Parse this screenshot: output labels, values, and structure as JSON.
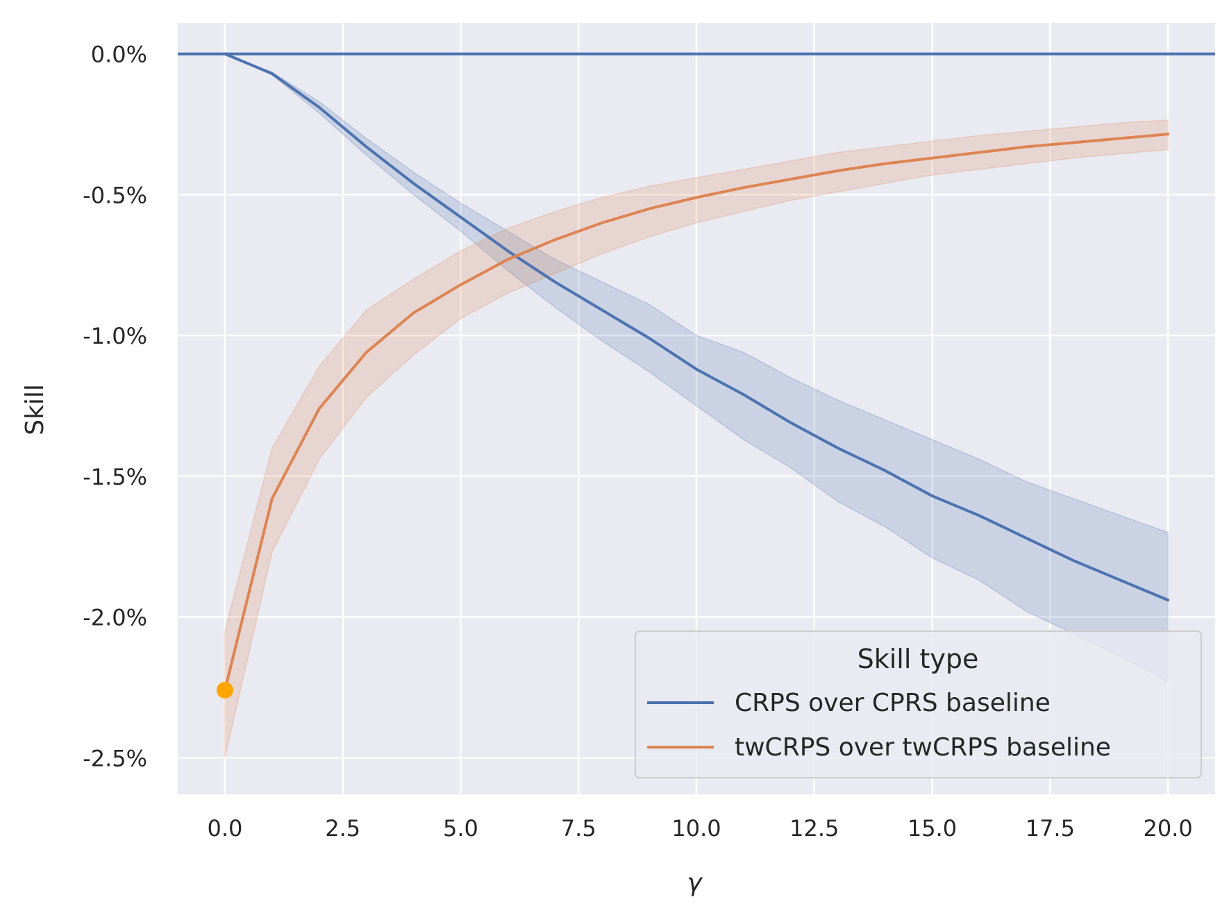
{
  "chart_data": {
    "type": "line",
    "xlabel": "γ",
    "ylabel": "Skill",
    "xlim": [
      -1.0,
      21.0
    ],
    "ylim": [
      -2.63,
      0.11
    ],
    "xticks": [
      0.0,
      2.5,
      5.0,
      7.5,
      10.0,
      12.5,
      15.0,
      17.5,
      20.0
    ],
    "xtick_labels": [
      "0.0",
      "2.5",
      "5.0",
      "7.5",
      "10.0",
      "12.5",
      "15.0",
      "17.5",
      "20.0"
    ],
    "yticks": [
      0.0,
      -0.5,
      -1.0,
      -1.5,
      -2.0,
      -2.5
    ],
    "ytick_labels": [
      "0.0%",
      "-0.5%",
      "-1.0%",
      "-1.5%",
      "-2.0%",
      "-2.5%"
    ],
    "grid": true,
    "background": "#eaeaf2",
    "legend": {
      "title": "Skill type",
      "position": "lower-right"
    },
    "reference_line": {
      "y": 0.0,
      "color": "#4c72b0"
    },
    "x": [
      0,
      1,
      2,
      3,
      4,
      5,
      6,
      7,
      8,
      9,
      10,
      11,
      12,
      13,
      14,
      15,
      16,
      17,
      18,
      19,
      20
    ],
    "series": [
      {
        "name": "CRPS over CPRS baseline",
        "color": "#4c72b0",
        "values": [
          0.0,
          -0.07,
          -0.19,
          -0.33,
          -0.46,
          -0.58,
          -0.7,
          -0.81,
          -0.91,
          -1.01,
          -1.12,
          -1.21,
          -1.31,
          -1.4,
          -1.48,
          -1.57,
          -1.64,
          -1.72,
          -1.8,
          -1.87,
          -1.94
        ],
        "ci_lower": [
          0.0,
          -0.075,
          -0.21,
          -0.36,
          -0.5,
          -0.63,
          -0.77,
          -0.9,
          -1.02,
          -1.13,
          -1.25,
          -1.37,
          -1.47,
          -1.59,
          -1.68,
          -1.79,
          -1.87,
          -1.98,
          -2.06,
          -2.14,
          -2.23
        ],
        "ci_upper": [
          0.0,
          -0.065,
          -0.17,
          -0.3,
          -0.42,
          -0.53,
          -0.63,
          -0.73,
          -0.81,
          -0.89,
          -1.0,
          -1.06,
          -1.15,
          -1.23,
          -1.3,
          -1.37,
          -1.44,
          -1.52,
          -1.58,
          -1.64,
          -1.7
        ]
      },
      {
        "name": "twCRPS over twCRPS baseline",
        "color": "#dd8452",
        "values": [
          -2.26,
          -1.58,
          -1.26,
          -1.06,
          -0.92,
          -0.82,
          -0.73,
          -0.66,
          -0.6,
          -0.55,
          -0.51,
          -0.475,
          -0.445,
          -0.415,
          -0.39,
          -0.37,
          -0.35,
          -0.33,
          -0.315,
          -0.3,
          -0.285
        ],
        "ci_lower": [
          -2.5,
          -1.77,
          -1.44,
          -1.22,
          -1.07,
          -0.94,
          -0.85,
          -0.78,
          -0.71,
          -0.65,
          -0.6,
          -0.56,
          -0.52,
          -0.49,
          -0.46,
          -0.43,
          -0.41,
          -0.39,
          -0.37,
          -0.355,
          -0.34
        ],
        "ci_upper": [
          -2.05,
          -1.4,
          -1.11,
          -0.91,
          -0.8,
          -0.7,
          -0.62,
          -0.56,
          -0.51,
          -0.47,
          -0.44,
          -0.41,
          -0.38,
          -0.35,
          -0.33,
          -0.31,
          -0.29,
          -0.275,
          -0.26,
          -0.245,
          -0.235
        ]
      }
    ],
    "highlight_point": {
      "x": 0,
      "y": -2.26,
      "color": "#ffa500"
    }
  }
}
